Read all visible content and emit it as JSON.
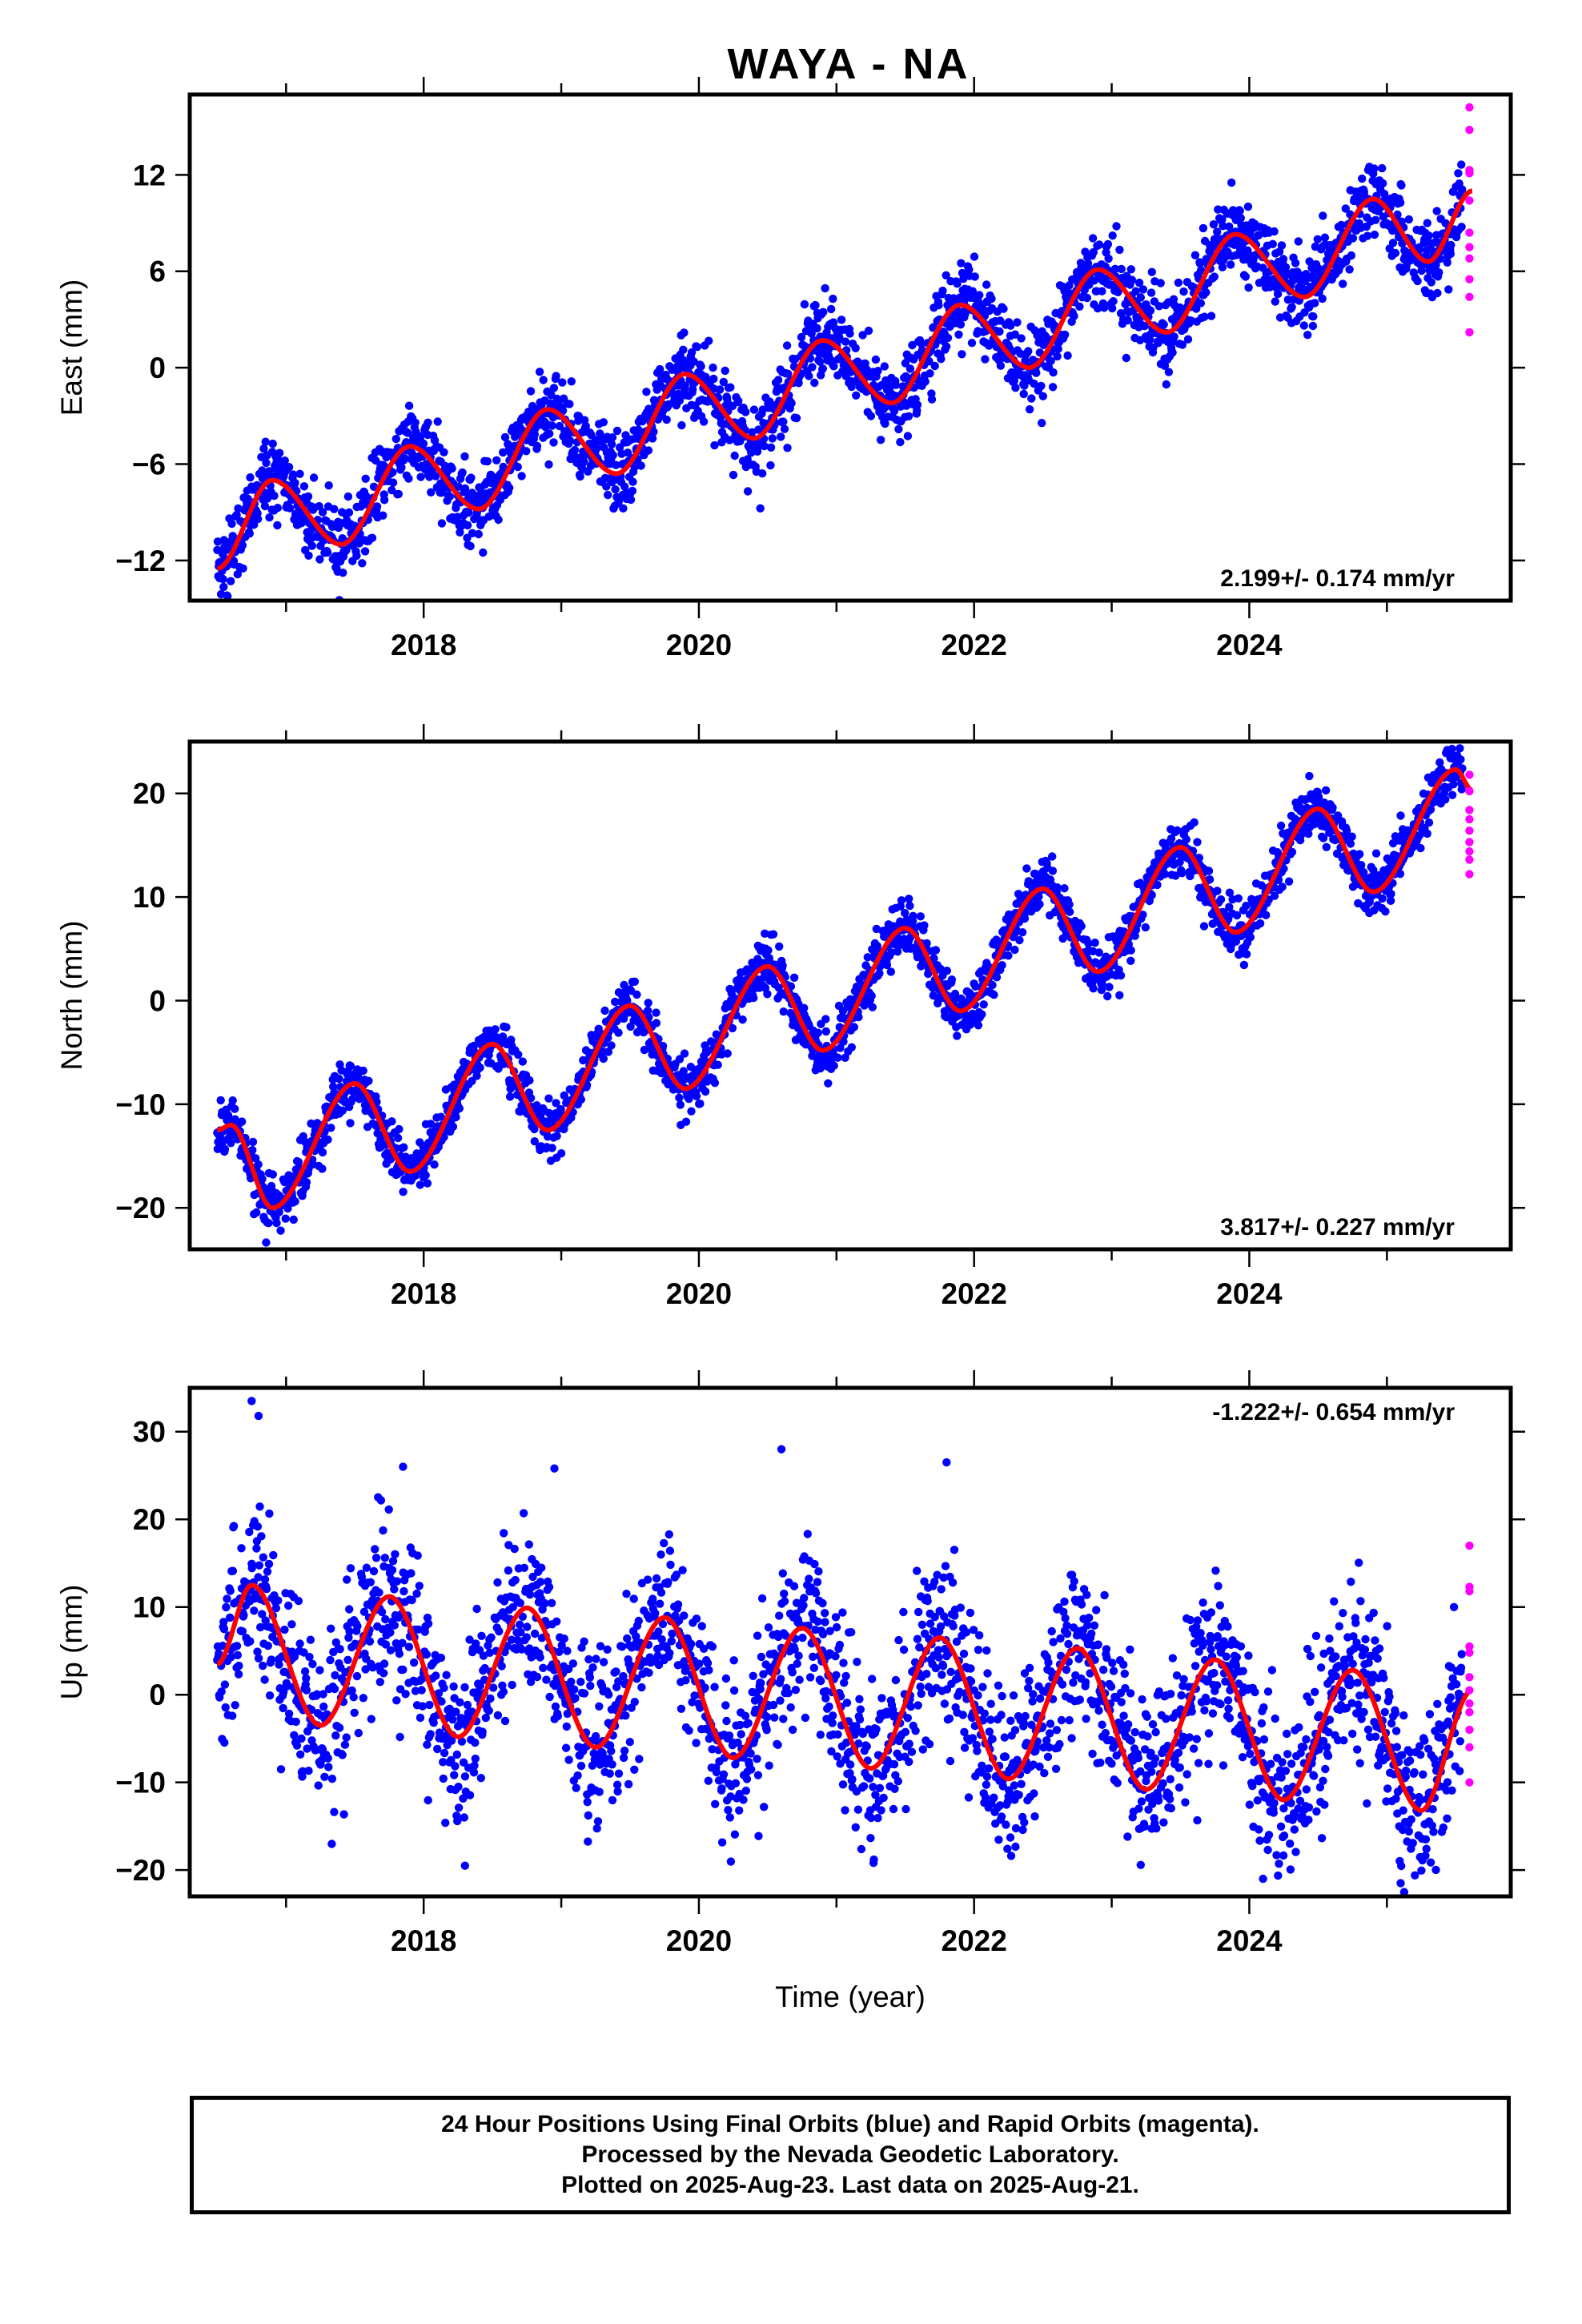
{
  "title": "WAYA - NA",
  "chart_data": [
    {
      "type": "scatter",
      "component": "east",
      "ylabel": "East (mm)",
      "xlabel": "",
      "xlim": [
        2016.3,
        2025.9
      ],
      "ylim": [
        -14.5,
        17
      ],
      "yticks": [
        -12,
        -6,
        0,
        6,
        12
      ],
      "xticks": [
        2018,
        2020,
        2022,
        2024
      ],
      "rate_label": "2.199+/- 0.174 mm/yr",
      "rate_position": "bottom-right",
      "model": {
        "start": 2016.5,
        "end": 2025.62,
        "intercept_at_2021": 0.3,
        "rate": 2.2,
        "annual": [
          {
            "t": 2016.5,
            "v": -12.5
          },
          {
            "t": 2016.9,
            "v": -7.0
          },
          {
            "t": 2017.4,
            "v": -11.0
          },
          {
            "t": 2017.9,
            "v": -4.9
          },
          {
            "t": 2018.4,
            "v": -8.8
          },
          {
            "t": 2018.9,
            "v": -2.6
          },
          {
            "t": 2019.4,
            "v": -6.6
          },
          {
            "t": 2019.9,
            "v": -0.4
          },
          {
            "t": 2020.4,
            "v": -4.4
          },
          {
            "t": 2020.9,
            "v": 1.7
          },
          {
            "t": 2021.4,
            "v": -2.2
          },
          {
            "t": 2021.9,
            "v": 3.9
          },
          {
            "t": 2022.4,
            "v": 0.0
          },
          {
            "t": 2022.9,
            "v": 6.1
          },
          {
            "t": 2023.4,
            "v": 2.2
          },
          {
            "t": 2023.9,
            "v": 8.3
          },
          {
            "t": 2024.4,
            "v": 4.4
          },
          {
            "t": 2024.9,
            "v": 10.5
          },
          {
            "t": 2025.3,
            "v": 6.6
          },
          {
            "t": 2025.62,
            "v": 11.0
          }
        ]
      },
      "final_orbits_scatter": {
        "start": 2016.5,
        "end": 2025.55,
        "noise_mm": 1.2
      },
      "rapid_orbits_points": [
        {
          "t": 2025.6,
          "v": 16.2
        },
        {
          "t": 2025.6,
          "v": 14.8
        },
        {
          "t": 2025.6,
          "v": 12.3
        },
        {
          "t": 2025.6,
          "v": 12.1
        },
        {
          "t": 2025.6,
          "v": 10.4
        },
        {
          "t": 2025.6,
          "v": 8.4
        },
        {
          "t": 2025.6,
          "v": 7.5
        },
        {
          "t": 2025.6,
          "v": 6.8
        },
        {
          "t": 2025.6,
          "v": 5.5
        },
        {
          "t": 2025.6,
          "v": 4.4
        },
        {
          "t": 2025.6,
          "v": 2.2
        }
      ]
    },
    {
      "type": "scatter",
      "component": "north",
      "ylabel": "North (mm)",
      "xlabel": "",
      "xlim": [
        2016.3,
        2025.9
      ],
      "ylim": [
        -24,
        25
      ],
      "yticks": [
        -20,
        -10,
        0,
        10,
        20
      ],
      "xticks": [
        2018,
        2020,
        2022,
        2024
      ],
      "rate_label": "3.817+/- 0.227 mm/yr",
      "rate_position": "bottom-right",
      "model": {
        "start": 2016.5,
        "end": 2025.62,
        "annual": [
          {
            "t": 2016.5,
            "v": -12.5
          },
          {
            "t": 2016.6,
            "v": -12.0
          },
          {
            "t": 2016.9,
            "v": -20.0
          },
          {
            "t": 2017.5,
            "v": -8.0
          },
          {
            "t": 2017.9,
            "v": -16.5
          },
          {
            "t": 2018.5,
            "v": -4.2
          },
          {
            "t": 2018.9,
            "v": -12.5
          },
          {
            "t": 2019.5,
            "v": -0.5
          },
          {
            "t": 2019.9,
            "v": -8.5
          },
          {
            "t": 2020.5,
            "v": 3.3
          },
          {
            "t": 2020.9,
            "v": -4.8
          },
          {
            "t": 2021.5,
            "v": 7.0
          },
          {
            "t": 2021.9,
            "v": -1.0
          },
          {
            "t": 2022.5,
            "v": 10.8
          },
          {
            "t": 2022.9,
            "v": 2.8
          },
          {
            "t": 2023.5,
            "v": 14.8
          },
          {
            "t": 2023.9,
            "v": 6.6
          },
          {
            "t": 2024.5,
            "v": 18.5
          },
          {
            "t": 2024.9,
            "v": 10.5
          },
          {
            "t": 2025.5,
            "v": 22.3
          },
          {
            "t": 2025.62,
            "v": 20.3
          }
        ]
      },
      "final_orbits_scatter": {
        "start": 2016.5,
        "end": 2025.55,
        "noise_mm": 1.3
      },
      "rapid_orbits_points": [
        {
          "t": 2025.6,
          "v": 21.8
        },
        {
          "t": 2025.6,
          "v": 20.2
        },
        {
          "t": 2025.6,
          "v": 18.4
        },
        {
          "t": 2025.6,
          "v": 17.5
        },
        {
          "t": 2025.6,
          "v": 16.4
        },
        {
          "t": 2025.6,
          "v": 15.3
        },
        {
          "t": 2025.6,
          "v": 14.4
        },
        {
          "t": 2025.6,
          "v": 13.6
        },
        {
          "t": 2025.6,
          "v": 12.2
        }
      ]
    },
    {
      "type": "scatter",
      "component": "up",
      "ylabel": "Up (mm)",
      "xlabel": "Time (year)",
      "xlim": [
        2016.3,
        2025.9
      ],
      "ylim": [
        -23,
        35
      ],
      "yticks": [
        -20,
        -10,
        0,
        10,
        20,
        30
      ],
      "xticks": [
        2018,
        2020,
        2022,
        2024
      ],
      "rate_label": "-1.222+/- 0.654 mm/yr",
      "rate_position": "top-right",
      "model": {
        "start": 2016.5,
        "end": 2025.62,
        "annual": [
          {
            "t": 2016.5,
            "v": 3.5
          },
          {
            "t": 2016.75,
            "v": 12.5
          },
          {
            "t": 2017.25,
            "v": -3.5
          },
          {
            "t": 2017.75,
            "v": 11.2
          },
          {
            "t": 2018.25,
            "v": -4.8
          },
          {
            "t": 2018.75,
            "v": 9.9
          },
          {
            "t": 2019.25,
            "v": -6.0
          },
          {
            "t": 2019.75,
            "v": 8.8
          },
          {
            "t": 2020.25,
            "v": -7.2
          },
          {
            "t": 2020.75,
            "v": 7.6
          },
          {
            "t": 2021.25,
            "v": -8.4
          },
          {
            "t": 2021.75,
            "v": 6.5
          },
          {
            "t": 2022.25,
            "v": -9.6
          },
          {
            "t": 2022.75,
            "v": 5.3
          },
          {
            "t": 2023.25,
            "v": -10.8
          },
          {
            "t": 2023.75,
            "v": 4.0
          },
          {
            "t": 2024.25,
            "v": -12.0
          },
          {
            "t": 2024.75,
            "v": 2.8
          },
          {
            "t": 2025.25,
            "v": -13.2
          },
          {
            "t": 2025.62,
            "v": 0.5
          }
        ]
      },
      "final_orbits_scatter": {
        "start": 2016.5,
        "end": 2025.55,
        "noise_mm": 4.8
      },
      "outliers": [
        {
          "t": 2016.75,
          "v": 33.5
        },
        {
          "t": 2016.8,
          "v": 31.8
        },
        {
          "t": 2017.85,
          "v": 26.0
        },
        {
          "t": 2018.95,
          "v": 25.8
        },
        {
          "t": 2020.6,
          "v": 28.0
        },
        {
          "t": 2021.8,
          "v": 26.5
        },
        {
          "t": 2018.3,
          "v": -19.5
        },
        {
          "t": 2024.1,
          "v": -21.0
        },
        {
          "t": 2025.1,
          "v": -21.5
        }
      ],
      "rapid_orbits_points": [
        {
          "t": 2025.6,
          "v": 17.0
        },
        {
          "t": 2025.6,
          "v": 12.3
        },
        {
          "t": 2025.6,
          "v": 11.8
        },
        {
          "t": 2025.6,
          "v": 5.5
        },
        {
          "t": 2025.6,
          "v": 4.8
        },
        {
          "t": 2025.6,
          "v": 2.0
        },
        {
          "t": 2025.6,
          "v": 0.5
        },
        {
          "t": 2025.6,
          "v": -1.0
        },
        {
          "t": 2025.6,
          "v": -2.0
        },
        {
          "t": 2025.6,
          "v": -4.0
        },
        {
          "t": 2025.6,
          "v": -6.0
        },
        {
          "t": 2025.6,
          "v": -10.0
        }
      ]
    }
  ],
  "colors": {
    "final_orbits": "#0000ff",
    "rapid_orbits": "#ff00ff",
    "model_line": "#ff0000",
    "frame": "#000000"
  },
  "footer": {
    "line1": "24 Hour Positions Using Final Orbits (blue) and Rapid Orbits (magenta).",
    "line2": "Processed by the Nevada Geodetic Laboratory.",
    "line3": "Plotted on 2025-Aug-23. Last data on 2025-Aug-21."
  }
}
